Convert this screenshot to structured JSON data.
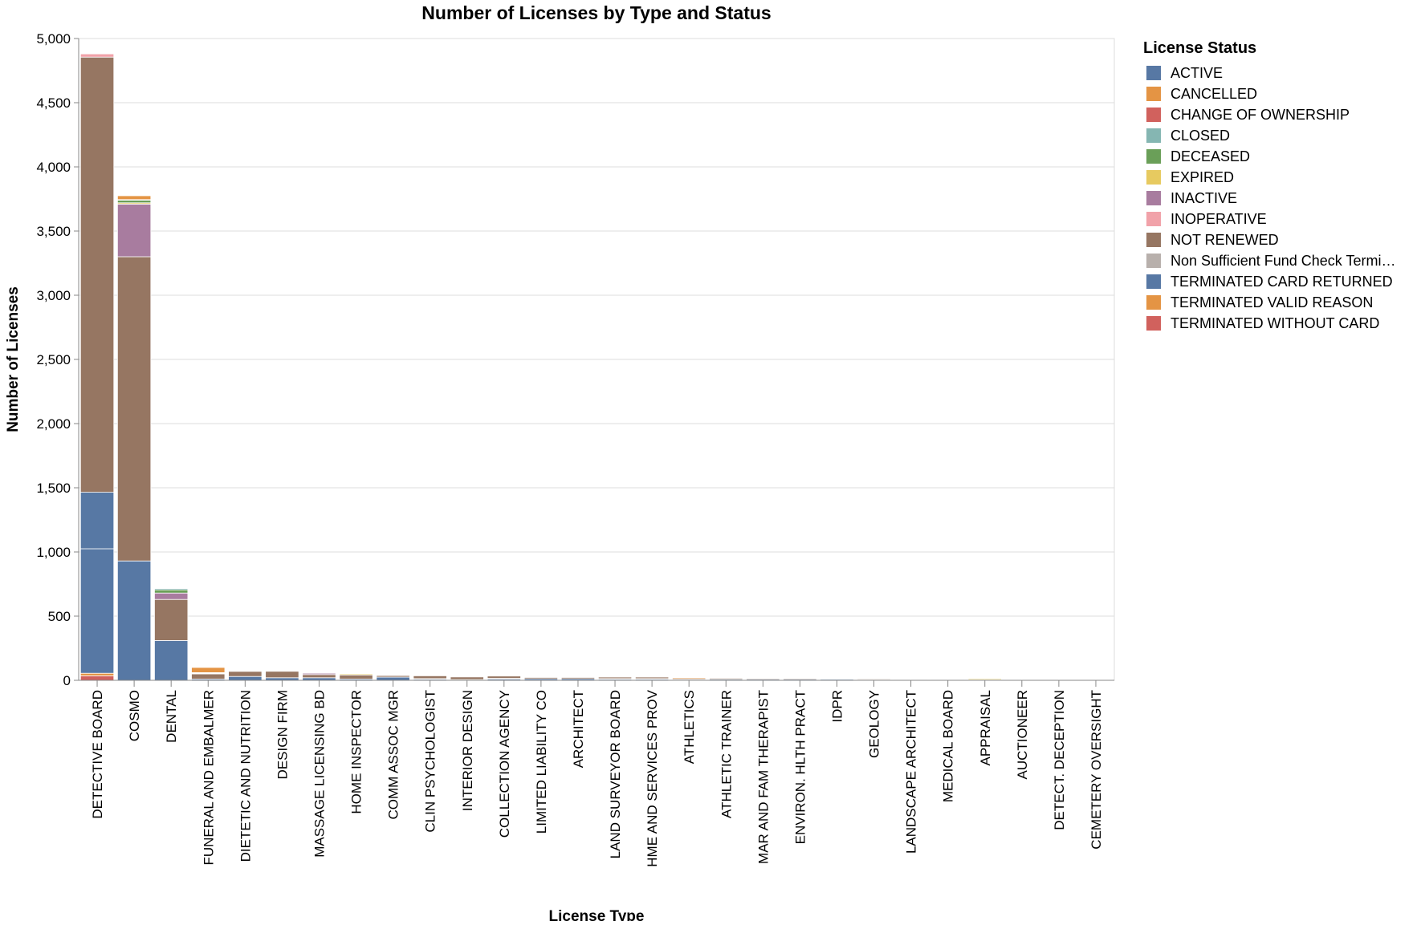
{
  "chart_data": {
    "type": "bar",
    "stacked": true,
    "title": "Number of Licenses by Type and Status",
    "xlabel": "License Type",
    "ylabel": "Number of Licenses",
    "ylim": [
      0,
      5000
    ],
    "yticks": [
      0,
      500,
      1000,
      1500,
      2000,
      2500,
      3000,
      3500,
      4000,
      4500,
      5000
    ],
    "ytick_labels": [
      "0",
      "500",
      "1,000",
      "1,500",
      "2,000",
      "2,500",
      "3,000",
      "3,500",
      "4,000",
      "4,500",
      "5,000"
    ],
    "grid": true,
    "legend": {
      "title": "License Status",
      "position": "right"
    },
    "categories": [
      "DETECTIVE BOARD",
      "COSMO",
      "DENTAL",
      "FUNERAL AND EMBALMER",
      "DIETETIC AND NUTRITION",
      "DESIGN FIRM",
      "MASSAGE LICENSING BD",
      "HOME INSPECTOR",
      "COMM ASSOC MGR",
      "CLIN PSYCHOLOGIST",
      "INTERIOR DESIGN",
      "COLLECTION AGENCY",
      "LIMITED LIABILITY CO",
      "ARCHITECT",
      "LAND SURVEYOR BOARD",
      "HME AND SERVICES PROV",
      "ATHLETICS",
      "ATHLETIC TRAINER",
      "MAR AND FAM THERAPIST",
      "ENVIRON. HLTH PRACT",
      "IDPR",
      "GEOLOGY",
      "LANDSCAPE ARCHITECT",
      "MEDICAL BOARD",
      "APPRAISAL",
      "AUCTIONEER",
      "DETECT. DECEPTION",
      "CEMETERY OVERSIGHT"
    ],
    "series": [
      {
        "name": "ACTIVE",
        "color": "#5778a4",
        "values": [
          970,
          930,
          310,
          10,
          30,
          20,
          20,
          10,
          25,
          8,
          6,
          10,
          12,
          12,
          8,
          8,
          5,
          8,
          8,
          8,
          8,
          6,
          6,
          6,
          3,
          3,
          3,
          2
        ]
      },
      {
        "name": "CANCELLED",
        "color": "#e49444",
        "values": [
          0,
          30,
          0,
          40,
          0,
          0,
          0,
          0,
          0,
          0,
          0,
          0,
          0,
          0,
          0,
          0,
          8,
          0,
          0,
          0,
          0,
          0,
          0,
          0,
          0,
          0,
          0,
          0
        ]
      },
      {
        "name": "CHANGE OF OWNERSHIP",
        "color": "#d1615d",
        "values": [
          0,
          0,
          0,
          5,
          0,
          0,
          0,
          0,
          0,
          0,
          0,
          0,
          0,
          0,
          0,
          0,
          0,
          0,
          0,
          0,
          0,
          0,
          0,
          0,
          0,
          0,
          0,
          0
        ]
      },
      {
        "name": "CLOSED",
        "color": "#85b6b2",
        "values": [
          0,
          5,
          10,
          0,
          0,
          0,
          0,
          0,
          0,
          0,
          0,
          0,
          0,
          0,
          0,
          0,
          0,
          0,
          0,
          0,
          0,
          0,
          0,
          0,
          0,
          0,
          0,
          0
        ]
      },
      {
        "name": "DECEASED",
        "color": "#6a9f58",
        "values": [
          0,
          20,
          25,
          0,
          0,
          0,
          0,
          0,
          0,
          0,
          0,
          0,
          0,
          0,
          0,
          0,
          0,
          0,
          0,
          0,
          0,
          0,
          0,
          0,
          0,
          0,
          0,
          0
        ]
      },
      {
        "name": "EXPIRED",
        "color": "#e7ca60",
        "values": [
          0,
          10,
          0,
          5,
          0,
          0,
          0,
          8,
          0,
          0,
          0,
          0,
          0,
          0,
          0,
          0,
          0,
          0,
          0,
          0,
          0,
          0,
          0,
          0,
          8,
          0,
          0,
          0
        ]
      },
      {
        "name": "INACTIVE",
        "color": "#a87c9f",
        "values": [
          0,
          410,
          50,
          0,
          5,
          0,
          10,
          0,
          5,
          0,
          0,
          0,
          0,
          0,
          0,
          0,
          0,
          0,
          0,
          0,
          0,
          0,
          0,
          0,
          0,
          0,
          0,
          0
        ]
      },
      {
        "name": "INOPERATIVE",
        "color": "#f1a2a9",
        "values": [
          25,
          0,
          0,
          0,
          0,
          0,
          0,
          0,
          0,
          0,
          0,
          0,
          0,
          0,
          0,
          0,
          0,
          0,
          0,
          0,
          0,
          0,
          0,
          0,
          0,
          0,
          0,
          0
        ]
      },
      {
        "name": "NOT RENEWED",
        "color": "#967662",
        "values": [
          3390,
          2370,
          320,
          40,
          40,
          50,
          25,
          32,
          12,
          22,
          20,
          18,
          10,
          10,
          12,
          12,
          8,
          8,
          7,
          7,
          5,
          6,
          5,
          5,
          2,
          2,
          2,
          2
        ]
      },
      {
        "name": "Non Sufficient Fund Check Termi…",
        "color": "#b8b0ac",
        "values": [
          0,
          0,
          0,
          0,
          0,
          0,
          0,
          0,
          0,
          5,
          0,
          5,
          0,
          0,
          5,
          5,
          0,
          0,
          0,
          0,
          0,
          0,
          0,
          0,
          0,
          0,
          0,
          0
        ]
      },
      {
        "name": "TERMINATED CARD RETURNED",
        "color": "#5778a4",
        "values": [
          440,
          0,
          0,
          0,
          0,
          0,
          0,
          0,
          0,
          0,
          0,
          0,
          0,
          0,
          0,
          0,
          0,
          0,
          0,
          0,
          0,
          0,
          0,
          0,
          0,
          0,
          0,
          0
        ]
      },
      {
        "name": "TERMINATED VALID REASON",
        "color": "#e49444",
        "values": [
          20,
          0,
          0,
          0,
          0,
          0,
          0,
          0,
          0,
          0,
          0,
          0,
          0,
          0,
          0,
          0,
          0,
          0,
          0,
          0,
          0,
          0,
          0,
          0,
          0,
          0,
          0,
          0
        ]
      },
      {
        "name": "TERMINATED WITHOUT CARD",
        "color": "#d1615d",
        "values": [
          35,
          0,
          0,
          0,
          0,
          0,
          0,
          0,
          0,
          0,
          0,
          0,
          0,
          0,
          0,
          0,
          0,
          0,
          0,
          0,
          0,
          0,
          0,
          0,
          0,
          0,
          0,
          0
        ]
      }
    ],
    "stack_order": [
      12,
      11,
      0,
      10,
      9,
      8,
      7,
      6,
      5,
      4,
      3,
      2,
      1
    ]
  }
}
